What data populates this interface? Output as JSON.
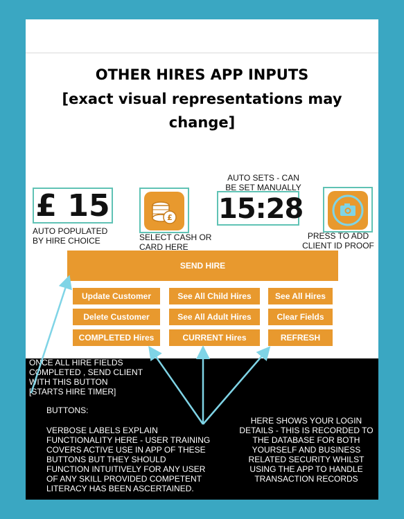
{
  "title": {
    "line1": "OTHER HIRES APP INPUTS",
    "line2": "[exact visual representations may",
    "line3": "change]"
  },
  "price": {
    "value": "£ 15",
    "caption1": "AUTO POPULATED",
    "caption2": "BY HIRE CHOICE"
  },
  "cash_card": {
    "icon": "cash-coins-icon",
    "caption1": "SELECT CASH OR",
    "caption2": "CARD HERE"
  },
  "time": {
    "value": "15:28",
    "caption1": "AUTO SETS - CAN",
    "caption2": "BE SET MANUALLY"
  },
  "camera": {
    "icon": "camera-icon",
    "caption1": "PRESS TO ADD",
    "caption2": "CLIENT ID PROOF"
  },
  "buttons": {
    "send_hire": "SEND HIRE",
    "update_customer": "Update Customer",
    "see_all_child_hires": "See All Child Hires",
    "see_all_hires": "See All Hires",
    "delete_customer": "Delete Customer",
    "see_all_adult_hires": "See All Adult Hires",
    "clear_fields": "Clear Fields",
    "completed_hires": "COMPLETED Hires",
    "current_hires": "CURRENT Hires",
    "refresh": "REFRESH"
  },
  "notes": {
    "send": [
      "ONCE ALL HIRE FIELDS",
      "COMPLETED , SEND CLIENT",
      "WITH THIS BUTTON",
      "[STARTS HIRE TIMER]"
    ],
    "buttons_head": "BUTTONS:",
    "buttons_body": [
      "VERBOSE LABELS EXPLAIN",
      "FUNCTIONALITY HERE - USER TRAINING",
      "COVERS ACTIVE USE IN APP OF THESE",
      "BUTTONS BUT THEY SHOULD",
      "FUNCTION INTUITIVELY FOR ANY USER",
      "OF ANY SKILL PROVIDED COMPETENT",
      "LITERACY HAS BEEN ASCERTAINED."
    ],
    "login": [
      "HERE SHOWS YOUR LOGIN",
      "DETAILS - THIS IS RECORDED TO",
      "THE DATABASE FOR BOTH",
      "YOURSELF AND BUSINESS",
      "RELATED SECURITY WHILST",
      "USING THE APP TO HANDLE",
      "TRANSACTION RECORDS"
    ]
  },
  "colors": {
    "background": "#3aa7c2",
    "accent": "#e8992e",
    "arrow": "#7fd4e6",
    "box_border": "#5fc2b4"
  }
}
